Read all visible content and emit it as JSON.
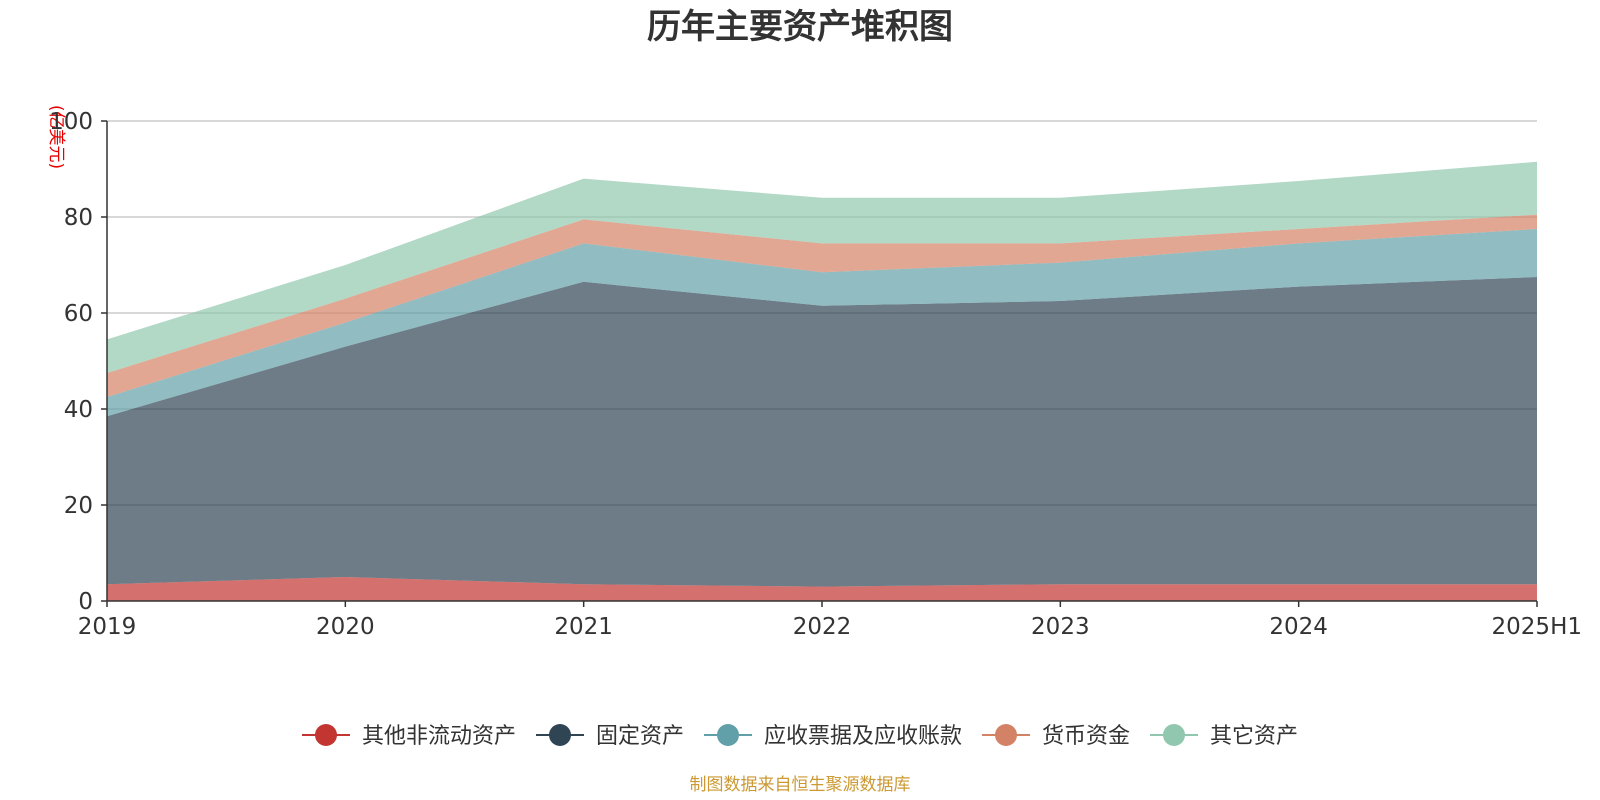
{
  "chart_data": {
    "type": "area",
    "stacked": true,
    "title": "历年主要资产堆积图",
    "unit_label": "(亿美元)",
    "categories": [
      "2019",
      "2020",
      "2021",
      "2022",
      "2023",
      "2024",
      "2025H1"
    ],
    "ylim": [
      0,
      100
    ],
    "yticks": [
      "0",
      "20",
      "40",
      "60",
      "80",
      "100"
    ],
    "grid": true,
    "legend_position": "bottom-center",
    "series": [
      {
        "name": "其他非流动资产",
        "color": "#c23531",
        "values": [
          3.5,
          5,
          3.5,
          3,
          3.5,
          3.5,
          3.5
        ]
      },
      {
        "name": "固定资产",
        "color": "#2f4554",
        "values": [
          35,
          48,
          63,
          58.5,
          59,
          62,
          64
        ]
      },
      {
        "name": "应收票据及应收账款",
        "color": "#61a0a8",
        "values": [
          4,
          5,
          8,
          7,
          8,
          9,
          10
        ]
      },
      {
        "name": "货币资金",
        "color": "#d48265",
        "values": [
          5,
          5,
          5,
          6,
          4,
          3,
          3
        ]
      },
      {
        "name": "其它资产",
        "color": "#91c7ae",
        "values": [
          7,
          7,
          8.5,
          9.5,
          9.5,
          10,
          11
        ]
      }
    ],
    "source_note": "制图数据来自恒生聚源数据库"
  }
}
